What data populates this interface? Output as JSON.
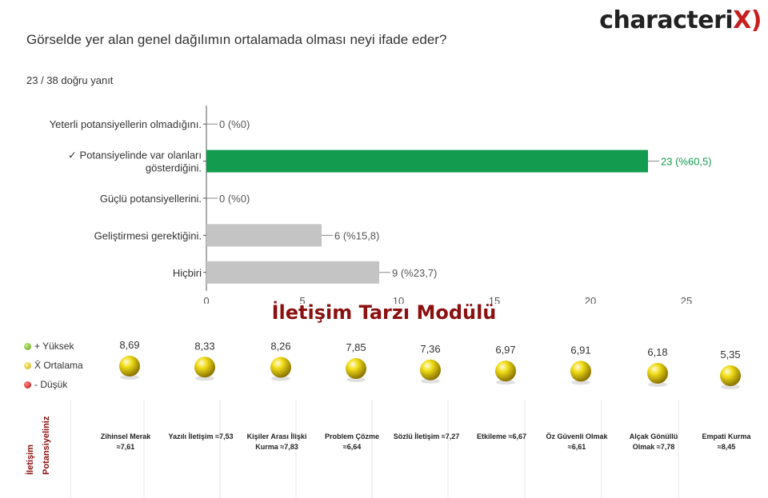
{
  "brand": {
    "logo_main": "characteri",
    "logo_x": "X)"
  },
  "question": "Görselde yer alan genel dağılımın ortalamada olması neyi ifade eder?",
  "score": "23 / 38 doğru yanıt",
  "chart_data": [
    {
      "type": "bar",
      "orientation": "horizontal",
      "categories": [
        "Yeterli potansiyellerin olmadığını.",
        "✓ Potansiyelinde var olanları gösterdiğini.",
        "Güçlü potansiyellerini.",
        "Geliştirmesi gerektiğini.",
        "Hiçbiri"
      ],
      "category_lines": [
        [
          "Yeterli potansiyellerin olmadığını."
        ],
        [
          "✓ Potansiyelinde var olanları",
          "gösterdiğini."
        ],
        [
          "Güçlü potansiyellerini."
        ],
        [
          "Geliştirmesi gerektiğini."
        ],
        [
          "Hiçbiri"
        ]
      ],
      "values": [
        0,
        23,
        0,
        6,
        9
      ],
      "data_labels": [
        "0 (%0)",
        "23 (%60,5)",
        "0 (%0)",
        "6 (%15,8)",
        "9 (%23,7)"
      ],
      "correct_index": 1,
      "xlim": [
        0,
        25
      ],
      "xticks": [
        0,
        5,
        10,
        15,
        20,
        25
      ],
      "colors": {
        "correct": "#139b4f",
        "other": "#c4c4c4",
        "correct_label": "#139b4f",
        "label": "#555555"
      }
    },
    {
      "type": "scatter",
      "title": "İletişim Tarzı Modülü",
      "legend": [
        "+ Yüksek",
        "X̄ Ortalama",
        "- Düşük"
      ],
      "side_label": [
        "İletişim",
        "Potansiyeliniz"
      ],
      "scores": [
        "8,69",
        "8,33",
        "8,26",
        "7,85",
        "7,36",
        "6,97",
        "6,91",
        "6,18",
        "5,35"
      ],
      "values": [
        8.69,
        8.33,
        8.26,
        7.85,
        7.36,
        6.97,
        6.91,
        6.18,
        5.35
      ],
      "categories": [
        [
          "Zihinsel Merak",
          "≈7,61"
        ],
        [
          "Yazılı İletişim ≈7,53"
        ],
        [
          "Kişiler Arası İlişki",
          "Kurma ≈7,83"
        ],
        [
          "Problem Çözme",
          "≈6,64"
        ],
        [
          "Sözlü İletişim ≈7,27"
        ],
        [
          "Etkileme ≈6,67"
        ],
        [
          "Öz Güvenli Olmak",
          "≈6,61"
        ],
        [
          "Alçak Gönüllü",
          "Olmak ≈7,78"
        ],
        [
          "Empati Kurma",
          "≈8,45"
        ]
      ],
      "colors": {
        "title": "#8b1010",
        "dot": "#e3c400"
      }
    }
  ]
}
